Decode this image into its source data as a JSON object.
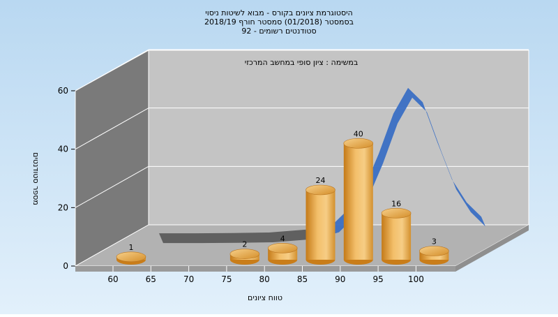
{
  "chart_data": {
    "type": "bar",
    "title_lines": [
      "היסטוגרמת ציונים בקורס - מבוא לשיטות ניסוי",
      "בסמסטר  (01/2018)  סמסטר חורף 2018/19",
      "סטודנטים רשומים - 92"
    ],
    "annotation": "במשימה : ציון סופי במחשב המרכזי",
    "xlabel": "טווח ציונים",
    "ylabel": "מספר סטודנטים",
    "x_ticks": [
      "60",
      "65",
      "70",
      "75",
      "80",
      "85",
      "90",
      "95",
      "100"
    ],
    "y_ticks": [
      "0",
      "20",
      "40",
      "60"
    ],
    "ylim": [
      0,
      60
    ],
    "bars": [
      {
        "x": 60,
        "value": 1,
        "label": "1"
      },
      {
        "x": 75,
        "value": 2,
        "label": "2"
      },
      {
        "x": 80,
        "value": 4,
        "label": "4"
      },
      {
        "x": 85,
        "value": 24,
        "label": "24"
      },
      {
        "x": 90,
        "value": 40,
        "label": "40"
      },
      {
        "x": 95,
        "value": 16,
        "label": "16"
      },
      {
        "x": 100,
        "value": 3,
        "label": "3"
      }
    ],
    "curve": {
      "x": [
        60,
        65,
        70,
        75,
        80,
        82,
        84,
        86,
        88,
        90,
        92,
        94,
        96,
        98,
        100,
        102,
        104
      ],
      "y": [
        0.2,
        0.2,
        0.3,
        0.5,
        1.5,
        2.5,
        4,
        9,
        16,
        28,
        42,
        51,
        46,
        32,
        19,
        11,
        6
      ]
    },
    "colors": {
      "bar": "#f0b14c",
      "bar_dark": "#c97d19",
      "curve": "#3a6fc4",
      "curve_flat": "#5c5c5c",
      "plot_bg": "#c4c4c4"
    }
  }
}
